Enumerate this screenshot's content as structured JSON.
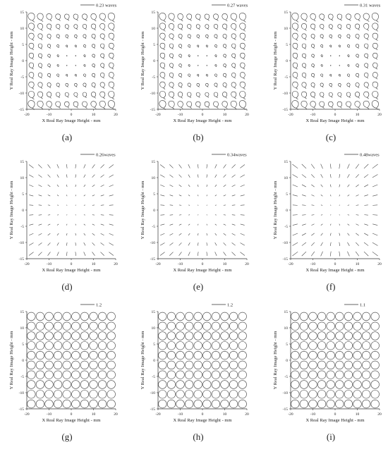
{
  "chart_data": [
    {
      "type": "field_map",
      "panel": "(a)",
      "map": "coma",
      "scale_label": "0.23 waves",
      "xlabel": "X Real Ray Image Height - mm",
      "ylabel": "Y Real Ray Image Height - mm",
      "xlim": [
        -20,
        20
      ],
      "ylim": [
        -15,
        15
      ],
      "x_ticks": [
        -20,
        -10,
        0,
        10,
        20
      ],
      "y_ticks": [
        -15,
        -10,
        -5,
        0,
        5,
        10,
        15
      ],
      "grid_x": [
        -18,
        -14,
        -10,
        -6,
        -2,
        2,
        6,
        10,
        14,
        18
      ],
      "grid_y": [
        -13.5,
        -10.5,
        -7.5,
        -4.5,
        -1.5,
        1.5,
        4.5,
        7.5,
        10.5,
        13.5
      ]
    },
    {
      "type": "field_map",
      "panel": "(b)",
      "map": "coma",
      "scale_label": "0.27 waves",
      "xlabel": "X Real Ray Image Height - mm",
      "ylabel": "Y Real Ray Image Height - mm",
      "xlim": [
        -20,
        20
      ],
      "ylim": [
        -15,
        15
      ],
      "x_ticks": [
        -20,
        -10,
        0,
        10,
        20
      ],
      "y_ticks": [
        -15,
        -10,
        -5,
        0,
        5,
        10,
        15
      ],
      "grid_x": [
        -18,
        -14,
        -10,
        -6,
        -2,
        2,
        6,
        10,
        14,
        18
      ],
      "grid_y": [
        -13.5,
        -10.5,
        -7.5,
        -4.5,
        -1.5,
        1.5,
        4.5,
        7.5,
        10.5,
        13.5
      ]
    },
    {
      "type": "field_map",
      "panel": "(c)",
      "map": "coma",
      "scale_label": "0.31 waves",
      "xlabel": "X Real Ray Image Height - mm",
      "ylabel": "Y Real Ray Image Height - mm",
      "xlim": [
        -20,
        20
      ],
      "ylim": [
        -15,
        15
      ],
      "x_ticks": [
        -20,
        -10,
        0,
        10,
        20
      ],
      "y_ticks": [
        -15,
        -10,
        -5,
        0,
        5,
        10,
        15
      ],
      "grid_x": [
        -18,
        -14,
        -10,
        -6,
        -2,
        2,
        6,
        10,
        14,
        18
      ],
      "grid_y": [
        -13.5,
        -10.5,
        -7.5,
        -4.5,
        -1.5,
        1.5,
        4.5,
        7.5,
        10.5,
        13.5
      ]
    },
    {
      "type": "field_map",
      "panel": "(d)",
      "map": "astigmatism",
      "scale_label": "0.26waves",
      "xlabel": "X Real Ray Image Height - mm",
      "ylabel": "Y Real Ray Image Height - mm",
      "xlim": [
        -20,
        20
      ],
      "ylim": [
        -15,
        15
      ],
      "x_ticks": [
        -20,
        -10,
        0,
        10,
        20
      ],
      "y_ticks": [
        -15,
        -10,
        -5,
        0,
        5,
        10,
        15
      ],
      "grid_x": [
        -18,
        -14,
        -10,
        -6,
        -2,
        2,
        6,
        10,
        14,
        18
      ],
      "grid_y": [
        -13.5,
        -10.5,
        -7.5,
        -4.5,
        -1.5,
        1.5,
        4.5,
        7.5,
        10.5,
        13.5
      ]
    },
    {
      "type": "field_map",
      "panel": "(e)",
      "map": "astigmatism",
      "scale_label": "0.34waves",
      "xlabel": "X Real Ray Image Height - mm",
      "ylabel": "Y Real Ray Image Height - mm",
      "xlim": [
        -20,
        20
      ],
      "ylim": [
        -15,
        15
      ],
      "x_ticks": [
        -20,
        -10,
        0,
        10,
        20
      ],
      "y_ticks": [
        -15,
        -10,
        -5,
        0,
        5,
        10,
        15
      ],
      "grid_x": [
        -18,
        -14,
        -10,
        -6,
        -2,
        2,
        6,
        10,
        14,
        18
      ],
      "grid_y": [
        -13.5,
        -10.5,
        -7.5,
        -4.5,
        -1.5,
        1.5,
        4.5,
        7.5,
        10.5,
        13.5
      ]
    },
    {
      "type": "field_map",
      "panel": "(f)",
      "map": "astigmatism",
      "scale_label": "0.48waves",
      "xlabel": "X Real Ray Image Height - mm",
      "ylabel": "Y Real Ray Image Height - mm",
      "xlim": [
        -20,
        20
      ],
      "ylim": [
        -15,
        15
      ],
      "x_ticks": [
        -20,
        -10,
        0,
        10,
        20
      ],
      "y_ticks": [
        -15,
        -10,
        -5,
        0,
        5,
        10,
        15
      ],
      "grid_x": [
        -18,
        -14,
        -10,
        -6,
        -2,
        2,
        6,
        10,
        14,
        18
      ],
      "grid_y": [
        -13.5,
        -10.5,
        -7.5,
        -4.5,
        -1.5,
        1.5,
        4.5,
        7.5,
        10.5,
        13.5
      ]
    },
    {
      "type": "field_map",
      "panel": "(g)",
      "map": "circles",
      "scale_label": "1.2",
      "xlabel": "X Real Ray Image Height - mm",
      "ylabel": "Y Real Ray Image Height - mm",
      "xlim": [
        -20,
        20
      ],
      "ylim": [
        -15,
        15
      ],
      "x_ticks": [
        -20,
        -10,
        0,
        10,
        20
      ],
      "y_ticks": [
        -15,
        -10,
        -5,
        0,
        5,
        10,
        15
      ],
      "grid_x": [
        -18,
        -14,
        -10,
        -6,
        -2,
        2,
        6,
        10,
        14,
        18
      ],
      "grid_y": [
        -13.5,
        -10.5,
        -7.5,
        -4.5,
        -1.5,
        1.5,
        4.5,
        7.5,
        10.5,
        13.5
      ]
    },
    {
      "type": "field_map",
      "panel": "(h)",
      "map": "circles",
      "scale_label": "1.2",
      "xlabel": "X Real Ray Image Height - mm",
      "ylabel": "Y Real Ray Image Height - mm",
      "xlim": [
        -20,
        20
      ],
      "ylim": [
        -15,
        15
      ],
      "x_ticks": [
        -20,
        -10,
        0,
        10,
        20
      ],
      "y_ticks": [
        -15,
        -10,
        -5,
        0,
        5,
        10,
        15
      ],
      "grid_x": [
        -18,
        -14,
        -10,
        -6,
        -2,
        2,
        6,
        10,
        14,
        18
      ],
      "grid_y": [
        -13.5,
        -10.5,
        -7.5,
        -4.5,
        -1.5,
        1.5,
        4.5,
        7.5,
        10.5,
        13.5
      ]
    },
    {
      "type": "field_map",
      "panel": "(i)",
      "map": "circles",
      "scale_label": "1.1",
      "xlabel": "X Real Ray Image Height - mm",
      "ylabel": "Y Real Ray Image Height - mm",
      "xlim": [
        -20,
        20
      ],
      "ylim": [
        -15,
        15
      ],
      "x_ticks": [
        -20,
        -10,
        0,
        10,
        20
      ],
      "y_ticks": [
        -15,
        -10,
        -5,
        0,
        5,
        10,
        15
      ],
      "grid_x": [
        -18,
        -14,
        -10,
        -6,
        -2,
        2,
        6,
        10,
        14,
        18
      ],
      "grid_y": [
        -13.5,
        -10.5,
        -7.5,
        -4.5,
        -1.5,
        1.5,
        4.5,
        7.5,
        10.5,
        13.5
      ]
    }
  ]
}
